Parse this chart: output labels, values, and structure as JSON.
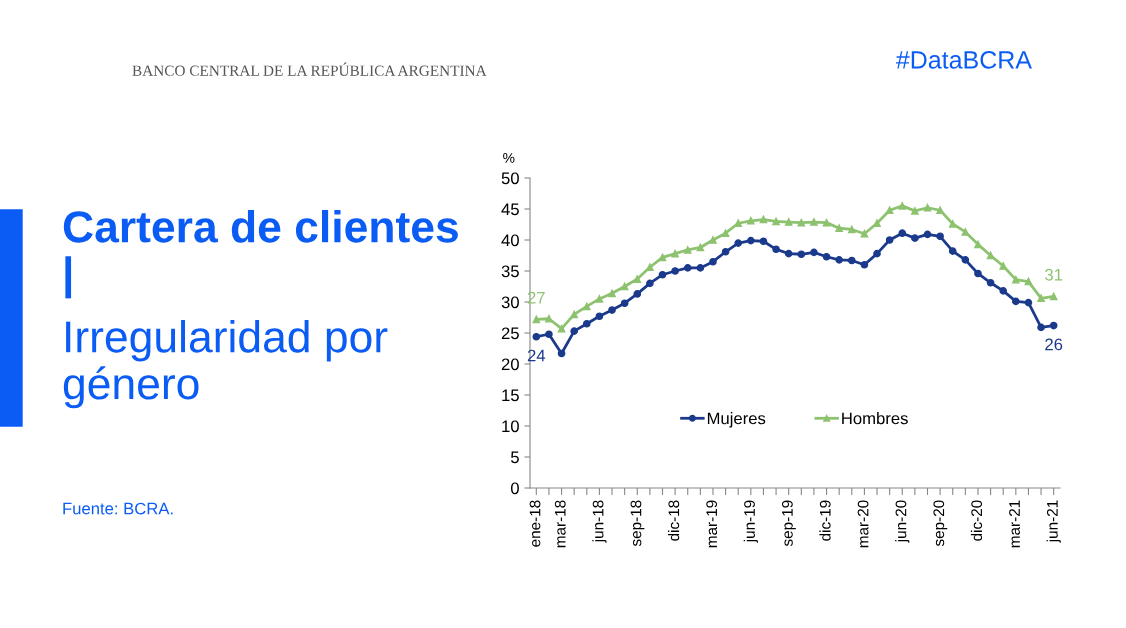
{
  "chart_data": {
    "type": "line",
    "title": "Cartera de clientes |",
    "subtitle": "Irregularidad por género",
    "ylabel": "%",
    "annotations": [
      "Fuente: BCRA.",
      "#DataBCRA",
      "BANCO CENTRAL DE LA REPÚBLICA ARGENTINA"
    ],
    "categories": [
      "ene-18",
      null,
      "mar-18",
      null,
      null,
      "jun-18",
      null,
      null,
      "sep-18",
      null,
      null,
      "dic-18",
      null,
      null,
      "mar-19",
      null,
      null,
      "jun-19",
      null,
      null,
      "sep-19",
      null,
      null,
      "dic-19",
      null,
      null,
      "mar-20",
      null,
      null,
      "jun-20",
      null,
      null,
      "sep-20",
      null,
      null,
      "dic-20",
      null,
      null,
      "mar-21",
      null,
      null,
      "jun-21"
    ],
    "series": [
      {
        "name": "Mujeres",
        "color": "#1b3a8c",
        "marker": "circle",
        "values": [
          24.4,
          24.8,
          21.7,
          25.3,
          26.5,
          27.7,
          28.7,
          29.8,
          31.3,
          33.0,
          34.4,
          35.0,
          35.5,
          35.5,
          36.5,
          38.1,
          39.5,
          39.9,
          39.8,
          38.5,
          37.8,
          37.7,
          38.0,
          37.3,
          36.8,
          36.7,
          36.0,
          37.8,
          40.0,
          41.1,
          40.3,
          40.9,
          40.6,
          38.2,
          36.8,
          34.6,
          33.1,
          31.8,
          30.1,
          29.9,
          25.9,
          26.2
        ],
        "value_labels": [
          "24",
          null,
          null,
          null,
          null,
          null,
          null,
          null,
          null,
          null,
          null,
          null,
          null,
          null,
          null,
          null,
          null,
          null,
          null,
          null,
          null,
          null,
          null,
          null,
          null,
          null,
          null,
          null,
          null,
          null,
          null,
          null,
          null,
          null,
          null,
          null,
          null,
          null,
          null,
          null,
          null,
          "26"
        ]
      },
      {
        "name": "Hombres",
        "color": "#8dc26f",
        "marker": "triangle",
        "values": [
          27.2,
          27.3,
          25.7,
          28.0,
          29.3,
          30.5,
          31.4,
          32.5,
          33.7,
          35.6,
          37.2,
          37.8,
          38.4,
          38.8,
          40.0,
          41.1,
          42.7,
          43.1,
          43.3,
          43.0,
          42.9,
          42.8,
          42.9,
          42.8,
          41.9,
          41.7,
          41.0,
          42.7,
          44.8,
          45.5,
          44.7,
          45.2,
          44.8,
          42.6,
          41.3,
          39.3,
          37.5,
          35.8,
          33.6,
          33.3,
          30.6,
          30.9
        ],
        "value_labels": [
          "27",
          null,
          null,
          null,
          null,
          null,
          null,
          null,
          null,
          null,
          null,
          null,
          null,
          null,
          null,
          null,
          null,
          null,
          null,
          null,
          null,
          null,
          null,
          null,
          null,
          null,
          null,
          null,
          null,
          null,
          null,
          null,
          null,
          null,
          null,
          null,
          null,
          null,
          null,
          null,
          null,
          "31"
        ]
      }
    ],
    "ylim": [
      0,
      50
    ],
    "yticks": [
      0,
      5,
      10,
      15,
      20,
      25,
      30,
      35,
      40,
      45,
      50
    ],
    "grid": false,
    "legend": "bottom"
  }
}
